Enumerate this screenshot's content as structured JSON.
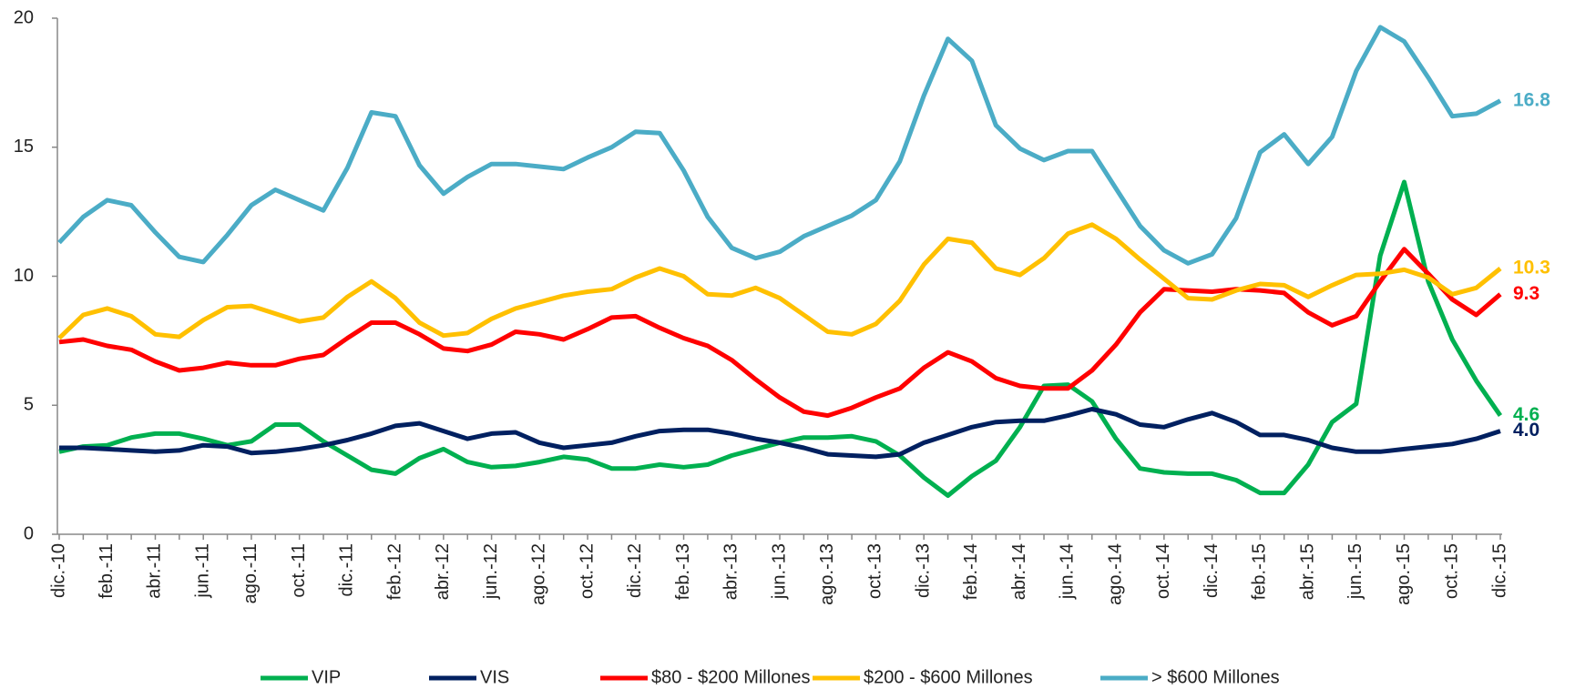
{
  "chart_data": {
    "type": "line",
    "categories": [
      "dic.-10",
      null,
      "feb.-11",
      null,
      "abr.-11",
      null,
      "jun.-11",
      null,
      "ago.-11",
      null,
      "oct.-11",
      null,
      "dic.-11",
      null,
      "feb.-12",
      null,
      "abr.-12",
      null,
      "jun.-12",
      null,
      "ago.-12",
      null,
      "oct.-12",
      null,
      "dic.-12",
      null,
      "feb.-13",
      null,
      "abr.-13",
      null,
      "jun.-13",
      null,
      "ago.-13",
      null,
      "oct.-13",
      null,
      "dic.-13",
      null,
      "feb.-14",
      null,
      "abr.-14",
      null,
      "jun.-14",
      null,
      "ago.-14",
      null,
      "oct.-14",
      null,
      "dic.-14",
      null,
      "feb.-15",
      null,
      "abr.-15",
      null,
      "jun.-15",
      null,
      "ago.-15",
      null,
      "oct.-15",
      null,
      "dic.-15"
    ],
    "series": [
      {
        "name": "VIP",
        "color": "#00b050",
        "values": [
          3.2,
          3.4,
          3.45,
          3.75,
          3.9,
          3.9,
          3.7,
          3.45,
          3.6,
          4.25,
          4.25,
          3.6,
          3.05,
          2.5,
          2.35,
          2.95,
          3.3,
          2.8,
          2.6,
          2.65,
          2.8,
          3.0,
          2.9,
          2.55,
          2.55,
          2.7,
          2.6,
          2.7,
          3.05,
          3.3,
          3.55,
          3.75,
          3.75,
          3.8,
          3.6,
          3.05,
          2.2,
          1.5,
          2.25,
          2.85,
          4.15,
          5.75,
          5.8,
          5.15,
          3.7,
          2.55,
          2.4,
          2.35,
          2.35,
          2.1,
          1.6,
          1.6,
          2.7,
          4.35,
          5.05,
          10.8,
          13.65,
          9.8,
          7.55,
          5.95,
          4.6
        ],
        "value_labels": [
          null,
          null,
          null,
          null,
          null,
          null,
          null,
          null,
          null,
          null,
          null,
          null,
          null,
          null,
          null,
          null,
          null,
          null,
          null,
          null,
          null,
          null,
          null,
          null,
          null,
          null,
          null,
          null,
          null,
          null,
          null,
          null,
          null,
          null,
          null,
          null,
          null,
          null,
          null,
          null,
          null,
          null,
          null,
          null,
          null,
          null,
          null,
          null,
          null,
          null,
          null,
          null,
          null,
          null,
          null,
          null,
          null,
          null,
          null,
          null,
          "4.6"
        ]
      },
      {
        "name": "VIS",
        "color": "#002060",
        "values": [
          3.35,
          3.35,
          3.3,
          3.25,
          3.2,
          3.25,
          3.45,
          3.4,
          3.15,
          3.2,
          3.3,
          3.45,
          3.65,
          3.9,
          4.2,
          4.3,
          4.0,
          3.7,
          3.9,
          3.95,
          3.55,
          3.35,
          3.45,
          3.55,
          3.8,
          4.0,
          4.05,
          4.05,
          3.9,
          3.7,
          3.55,
          3.35,
          3.1,
          3.05,
          3.0,
          3.1,
          3.55,
          3.85,
          4.15,
          4.35,
          4.4,
          4.4,
          4.6,
          4.85,
          4.65,
          4.25,
          4.15,
          4.45,
          4.7,
          4.35,
          3.85,
          3.85,
          3.65,
          3.35,
          3.2,
          3.2,
          3.3,
          3.4,
          3.5,
          3.7,
          4.0
        ],
        "value_labels": [
          null,
          null,
          null,
          null,
          null,
          null,
          null,
          null,
          null,
          null,
          null,
          null,
          null,
          null,
          null,
          null,
          null,
          null,
          null,
          null,
          null,
          null,
          null,
          null,
          null,
          null,
          null,
          null,
          null,
          null,
          null,
          null,
          null,
          null,
          null,
          null,
          null,
          null,
          null,
          null,
          null,
          null,
          null,
          null,
          null,
          null,
          null,
          null,
          null,
          null,
          null,
          null,
          null,
          null,
          null,
          null,
          null,
          null,
          null,
          null,
          "4.0"
        ]
      },
      {
        "name": "$80 - $200 Millones",
        "color": "#ff0000",
        "values": [
          7.45,
          7.55,
          7.3,
          7.15,
          6.7,
          6.35,
          6.45,
          6.65,
          6.55,
          6.55,
          6.8,
          6.95,
          7.6,
          8.2,
          8.2,
          7.75,
          7.2,
          7.1,
          7.35,
          7.85,
          7.75,
          7.55,
          7.95,
          8.4,
          8.45,
          8.0,
          7.6,
          7.3,
          6.75,
          6.0,
          5.3,
          4.75,
          4.6,
          4.9,
          5.3,
          5.65,
          6.45,
          7.05,
          6.7,
          6.05,
          5.75,
          5.65,
          5.65,
          6.35,
          7.35,
          8.6,
          9.5,
          9.45,
          9.4,
          9.5,
          9.45,
          9.35,
          8.6,
          8.1,
          8.45,
          9.8,
          11.05,
          10.1,
          9.1,
          8.5,
          9.3
        ],
        "value_labels": [
          null,
          null,
          null,
          null,
          null,
          null,
          null,
          null,
          null,
          null,
          null,
          null,
          null,
          null,
          null,
          null,
          null,
          null,
          null,
          null,
          null,
          null,
          null,
          null,
          null,
          null,
          null,
          null,
          null,
          null,
          null,
          null,
          null,
          null,
          null,
          null,
          null,
          null,
          null,
          null,
          null,
          null,
          null,
          null,
          null,
          null,
          null,
          null,
          null,
          null,
          null,
          null,
          null,
          null,
          null,
          null,
          null,
          null,
          null,
          null,
          "9.3"
        ]
      },
      {
        "name": "$200 - $600 Millones",
        "color": "#ffc000",
        "values": [
          7.6,
          8.5,
          8.75,
          8.45,
          7.75,
          7.65,
          8.3,
          8.8,
          8.85,
          8.55,
          8.25,
          8.4,
          9.2,
          9.8,
          9.15,
          8.2,
          7.7,
          7.8,
          8.35,
          8.75,
          9.0,
          9.25,
          9.4,
          9.5,
          9.95,
          10.3,
          10.0,
          9.3,
          9.25,
          9.55,
          9.15,
          8.5,
          7.85,
          7.75,
          8.15,
          9.05,
          10.45,
          11.45,
          11.3,
          10.3,
          10.05,
          10.7,
          11.65,
          12.0,
          11.45,
          10.65,
          9.9,
          9.15,
          9.1,
          9.45,
          9.7,
          9.65,
          9.2,
          9.65,
          10.05,
          10.1,
          10.25,
          9.95,
          9.3,
          9.55,
          10.3
        ],
        "value_labels": [
          null,
          null,
          null,
          null,
          null,
          null,
          null,
          null,
          null,
          null,
          null,
          null,
          null,
          null,
          null,
          null,
          null,
          null,
          null,
          null,
          null,
          null,
          null,
          null,
          null,
          null,
          null,
          null,
          null,
          null,
          null,
          null,
          null,
          null,
          null,
          null,
          null,
          null,
          null,
          null,
          null,
          null,
          null,
          null,
          null,
          null,
          null,
          null,
          null,
          null,
          null,
          null,
          null,
          null,
          null,
          null,
          null,
          null,
          null,
          null,
          "10.3"
        ]
      },
      {
        "name": "> $600 Millones",
        "color": "#4bacc6",
        "values": [
          11.3,
          12.3,
          12.95,
          12.75,
          11.7,
          10.75,
          10.55,
          11.6,
          12.75,
          13.35,
          12.95,
          12.55,
          14.2,
          16.35,
          16.2,
          14.3,
          13.2,
          13.85,
          14.35,
          14.35,
          14.25,
          14.15,
          14.6,
          15.0,
          15.6,
          15.55,
          14.1,
          12.3,
          11.1,
          10.7,
          10.95,
          11.55,
          11.95,
          12.35,
          12.95,
          14.45,
          17.0,
          19.2,
          18.35,
          15.85,
          14.95,
          14.5,
          14.85,
          14.85,
          13.4,
          11.95,
          11.0,
          10.5,
          10.85,
          12.25,
          14.8,
          15.5,
          14.35,
          15.4,
          17.95,
          19.65,
          19.1,
          17.7,
          16.2,
          16.3,
          16.8
        ],
        "value_labels": [
          null,
          null,
          null,
          null,
          null,
          null,
          null,
          null,
          null,
          null,
          null,
          null,
          null,
          null,
          null,
          null,
          null,
          null,
          null,
          null,
          null,
          null,
          null,
          null,
          null,
          null,
          null,
          null,
          null,
          null,
          null,
          null,
          null,
          null,
          null,
          null,
          null,
          null,
          null,
          null,
          null,
          null,
          null,
          null,
          null,
          null,
          null,
          null,
          null,
          null,
          null,
          null,
          null,
          null,
          null,
          null,
          null,
          null,
          null,
          null,
          "16.8"
        ]
      }
    ],
    "ylim": [
      0,
      20
    ],
    "yticks": [
      0,
      5,
      10,
      15,
      20
    ],
    "grid": false,
    "legend": "bottom"
  }
}
